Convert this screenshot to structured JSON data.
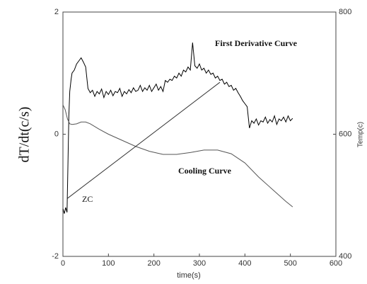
{
  "chart_data": {
    "type": "line",
    "xlabel": "time(s)",
    "ylabel": "dT/dt(c/s)",
    "y2label": "Temp(c)",
    "xlim": [
      0,
      600
    ],
    "xticks": [
      0,
      100,
      200,
      300,
      400,
      500,
      600
    ],
    "ylim": [
      -2,
      2
    ],
    "yticks": [
      -2,
      0,
      2
    ],
    "y2lim": [
      400,
      800
    ],
    "y2ticks": [
      400,
      600,
      800
    ],
    "series": [
      {
        "name": "First Derivative Curve",
        "color": "#000000",
        "x": [
          0,
          3,
          6,
          9,
          11,
          13,
          15,
          18,
          20,
          25,
          30,
          35,
          40,
          45,
          50,
          55,
          60,
          65,
          70,
          75,
          80,
          85,
          90,
          95,
          100,
          105,
          110,
          115,
          120,
          125,
          130,
          135,
          140,
          145,
          150,
          155,
          160,
          165,
          170,
          175,
          180,
          185,
          190,
          195,
          200,
          205,
          210,
          215,
          220,
          225,
          230,
          235,
          240,
          245,
          250,
          255,
          260,
          265,
          270,
          275,
          280,
          285,
          290,
          295,
          300,
          305,
          310,
          315,
          320,
          325,
          330,
          335,
          340,
          345,
          350,
          355,
          360,
          365,
          370,
          375,
          380,
          385,
          390,
          395,
          400,
          405,
          410,
          415,
          420,
          425,
          430,
          435,
          440,
          445,
          450,
          455,
          460,
          465,
          470,
          475,
          480,
          485,
          490,
          495,
          500,
          505
        ],
        "values": [
          -1.22,
          -1.3,
          -1.2,
          -1.28,
          -0.5,
          0.3,
          0.7,
          0.9,
          1.0,
          1.05,
          1.15,
          1.2,
          1.25,
          1.18,
          1.1,
          0.75,
          0.68,
          0.72,
          0.62,
          0.7,
          0.66,
          0.74,
          0.6,
          0.7,
          0.65,
          0.72,
          0.63,
          0.7,
          0.68,
          0.75,
          0.62,
          0.7,
          0.66,
          0.73,
          0.68,
          0.76,
          0.7,
          0.72,
          0.8,
          0.7,
          0.76,
          0.72,
          0.8,
          0.7,
          0.76,
          0.82,
          0.72,
          0.78,
          0.7,
          0.88,
          0.85,
          0.9,
          0.88,
          0.95,
          0.92,
          1.0,
          0.95,
          1.05,
          1.02,
          1.1,
          1.05,
          1.5,
          1.12,
          1.08,
          1.15,
          1.05,
          1.08,
          1.0,
          1.05,
          0.98,
          1.0,
          0.92,
          0.95,
          0.88,
          0.9,
          0.82,
          0.85,
          0.78,
          0.8,
          0.72,
          0.75,
          0.68,
          0.62,
          0.55,
          0.5,
          0.45,
          0.1,
          0.22,
          0.18,
          0.25,
          0.15,
          0.22,
          0.2,
          0.28,
          0.18,
          0.24,
          0.2,
          0.3,
          0.16,
          0.25,
          0.22,
          0.28,
          0.2,
          0.3,
          0.22,
          0.26
        ]
      },
      {
        "name": "Cooling Curve",
        "color": "#555555",
        "axis": "y2",
        "x": [
          0,
          5,
          10,
          15,
          20,
          30,
          40,
          50,
          60,
          80,
          100,
          130,
          160,
          190,
          220,
          250,
          280,
          310,
          340,
          370,
          400,
          430,
          460,
          490,
          505
        ],
        "values": [
          648,
          640,
          625,
          617,
          616,
          617,
          620,
          620,
          617,
          608,
          600,
          590,
          580,
          572,
          567,
          567,
          570,
          574,
          574,
          568,
          553,
          530,
          510,
          490,
          481
        ]
      },
      {
        "name": "ZC",
        "color": "#333333",
        "x": [
          10,
          345
        ],
        "values": [
          -1.05,
          0.85
        ]
      }
    ]
  }
}
